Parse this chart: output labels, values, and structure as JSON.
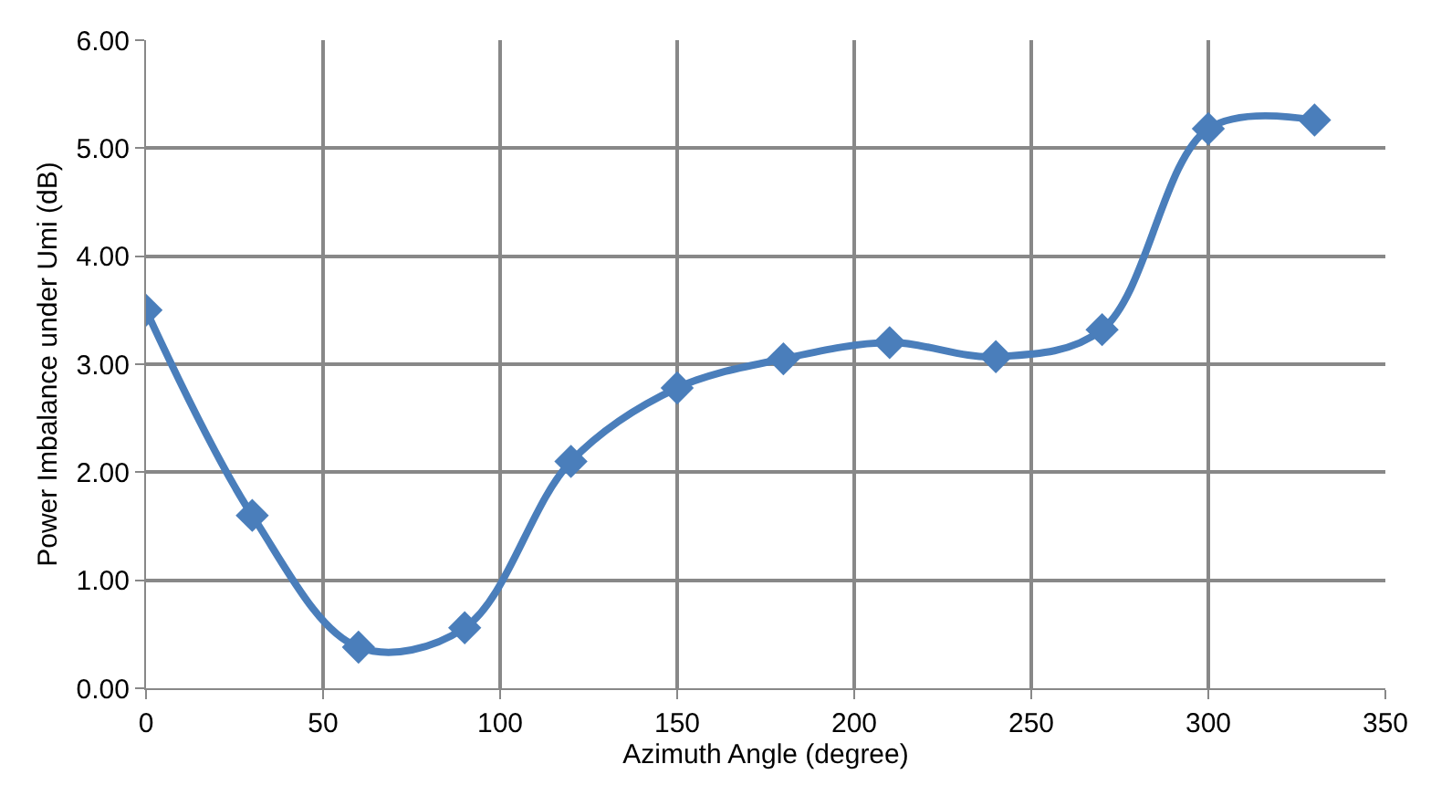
{
  "chart_data": {
    "type": "line",
    "xlabel": "Azimuth Angle (degree)",
    "ylabel": "Power Imbalance under Umi (dB)",
    "x": [
      0,
      30,
      60,
      90,
      120,
      150,
      180,
      210,
      240,
      270,
      300,
      330
    ],
    "series": [
      {
        "color": "#4a7ebb",
        "values": [
          3.5,
          1.6,
          0.38,
          0.56,
          2.1,
          2.78,
          3.05,
          3.2,
          3.07,
          3.32,
          5.18,
          5.26
        ]
      }
    ],
    "xlim": [
      0,
      350
    ],
    "xticks": [
      0,
      50,
      100,
      150,
      200,
      250,
      300,
      350
    ],
    "ylim": [
      0,
      6
    ],
    "yticks": [
      {
        "value": 0,
        "label": "0.00"
      },
      {
        "value": 1,
        "label": "1.00"
      },
      {
        "value": 2,
        "label": "2.00"
      },
      {
        "value": 3,
        "label": "3.00"
      },
      {
        "value": 4,
        "label": "4.00"
      },
      {
        "value": 5,
        "label": "5.00"
      },
      {
        "value": 6,
        "label": "6.00"
      }
    ],
    "grid": true,
    "marker": "diamond",
    "line_style": "solid"
  }
}
